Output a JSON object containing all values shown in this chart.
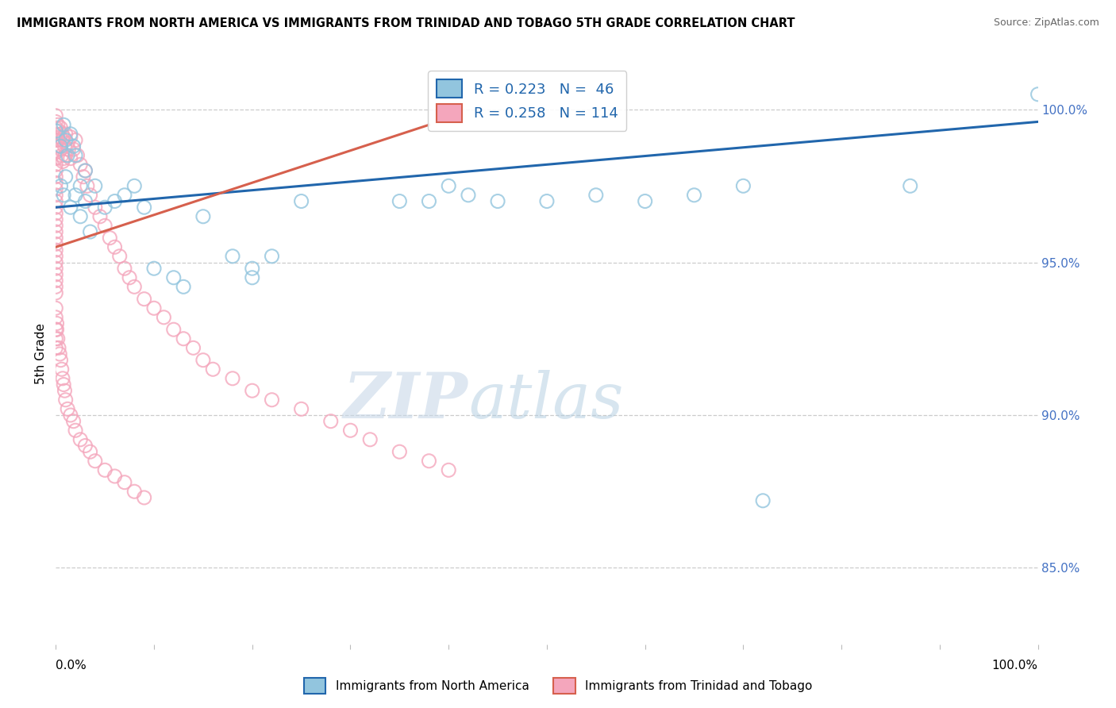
{
  "title": "IMMIGRANTS FROM NORTH AMERICA VS IMMIGRANTS FROM TRINIDAD AND TOBAGO 5TH GRADE CORRELATION CHART",
  "source": "Source: ZipAtlas.com",
  "ylabel": "5th Grade",
  "y_tick_labels": [
    "85.0%",
    "90.0%",
    "95.0%",
    "100.0%"
  ],
  "y_tick_values": [
    0.85,
    0.9,
    0.95,
    1.0
  ],
  "x_range": [
    0.0,
    1.0
  ],
  "y_range": [
    0.825,
    1.015
  ],
  "legend_label_blue": "Immigrants from North America",
  "legend_label_pink": "Immigrants from Trinidad and Tobago",
  "R_blue": 0.223,
  "N_blue": 46,
  "R_pink": 0.258,
  "N_pink": 114,
  "blue_color": "#92c5de",
  "pink_color": "#f4a6bc",
  "blue_line_color": "#2166ac",
  "pink_line_color": "#d6604d",
  "watermark_zip": "ZIP",
  "watermark_atlas": "atlas",
  "blue_scatter_x": [
    0.0,
    0.005,
    0.008,
    0.01,
    0.012,
    0.015,
    0.018,
    0.02,
    0.025,
    0.03,
    0.005,
    0.008,
    0.01,
    0.015,
    0.02,
    0.025,
    0.03,
    0.035,
    0.04,
    0.05,
    0.06,
    0.07,
    0.08,
    0.09,
    0.1,
    0.12,
    0.13,
    0.15,
    0.18,
    0.2,
    0.22,
    0.25,
    0.35,
    0.38,
    0.4,
    0.42,
    0.45,
    0.5,
    0.55,
    0.6,
    0.65,
    0.7,
    0.72,
    0.2,
    0.87,
    1.0
  ],
  "blue_scatter_y": [
    0.993,
    0.988,
    0.995,
    0.99,
    0.985,
    0.992,
    0.988,
    0.985,
    0.975,
    0.98,
    0.975,
    0.972,
    0.978,
    0.968,
    0.972,
    0.965,
    0.97,
    0.96,
    0.975,
    0.968,
    0.97,
    0.972,
    0.975,
    0.968,
    0.948,
    0.945,
    0.942,
    0.965,
    0.952,
    0.948,
    0.952,
    0.97,
    0.97,
    0.97,
    0.975,
    0.972,
    0.97,
    0.97,
    0.972,
    0.97,
    0.972,
    0.975,
    0.872,
    0.945,
    0.975,
    1.005
  ],
  "pink_scatter_x": [
    0.0,
    0.0,
    0.0,
    0.0,
    0.0,
    0.0,
    0.0,
    0.0,
    0.0,
    0.0,
    0.0,
    0.0,
    0.0,
    0.0,
    0.0,
    0.0,
    0.0,
    0.0,
    0.0,
    0.0,
    0.0,
    0.0,
    0.0,
    0.0,
    0.0,
    0.0,
    0.0,
    0.0,
    0.0,
    0.0,
    0.002,
    0.002,
    0.003,
    0.003,
    0.004,
    0.005,
    0.005,
    0.006,
    0.006,
    0.007,
    0.007,
    0.008,
    0.008,
    0.009,
    0.01,
    0.01,
    0.012,
    0.013,
    0.015,
    0.015,
    0.018,
    0.02,
    0.022,
    0.025,
    0.028,
    0.03,
    0.032,
    0.035,
    0.04,
    0.045,
    0.05,
    0.055,
    0.06,
    0.065,
    0.07,
    0.075,
    0.08,
    0.09,
    0.1,
    0.11,
    0.12,
    0.13,
    0.14,
    0.15,
    0.16,
    0.18,
    0.2,
    0.22,
    0.25,
    0.28,
    0.3,
    0.32,
    0.35,
    0.38,
    0.4,
    0.0,
    0.0,
    0.0,
    0.0,
    0.0,
    0.001,
    0.001,
    0.002,
    0.003,
    0.004,
    0.005,
    0.006,
    0.007,
    0.008,
    0.009,
    0.01,
    0.012,
    0.015,
    0.018,
    0.02,
    0.025,
    0.03,
    0.035,
    0.04,
    0.05,
    0.06,
    0.07,
    0.08,
    0.09
  ],
  "pink_scatter_y": [
    0.998,
    0.996,
    0.994,
    0.992,
    0.99,
    0.988,
    0.986,
    0.984,
    0.982,
    0.98,
    0.978,
    0.976,
    0.974,
    0.972,
    0.97,
    0.968,
    0.966,
    0.964,
    0.962,
    0.96,
    0.958,
    0.956,
    0.954,
    0.952,
    0.95,
    0.948,
    0.946,
    0.944,
    0.942,
    0.94,
    0.995,
    0.99,
    0.993,
    0.988,
    0.991,
    0.994,
    0.987,
    0.992,
    0.985,
    0.99,
    0.983,
    0.991,
    0.984,
    0.988,
    0.992,
    0.985,
    0.989,
    0.987,
    0.991,
    0.984,
    0.987,
    0.99,
    0.985,
    0.982,
    0.978,
    0.98,
    0.975,
    0.972,
    0.968,
    0.965,
    0.962,
    0.958,
    0.955,
    0.952,
    0.948,
    0.945,
    0.942,
    0.938,
    0.935,
    0.932,
    0.928,
    0.925,
    0.922,
    0.918,
    0.915,
    0.912,
    0.908,
    0.905,
    0.902,
    0.898,
    0.895,
    0.892,
    0.888,
    0.885,
    0.882,
    0.935,
    0.932,
    0.928,
    0.925,
    0.922,
    0.93,
    0.928,
    0.925,
    0.922,
    0.92,
    0.918,
    0.915,
    0.912,
    0.91,
    0.908,
    0.905,
    0.902,
    0.9,
    0.898,
    0.895,
    0.892,
    0.89,
    0.888,
    0.885,
    0.882,
    0.88,
    0.878,
    0.875,
    0.873
  ],
  "blue_trend_x": [
    0.0,
    1.0
  ],
  "blue_trend_y": [
    0.968,
    0.996
  ],
  "pink_trend_x": [
    0.0,
    0.38
  ],
  "pink_trend_y": [
    0.955,
    0.995
  ]
}
